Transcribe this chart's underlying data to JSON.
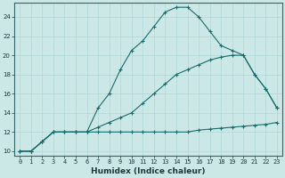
{
  "xlabel": "Humidex (Indice chaleur)",
  "bg_color": "#cce8e6",
  "grid_color": "#b0d8d4",
  "line_color": "#1a6b6b",
  "xlim": [
    -0.5,
    23.5
  ],
  "ylim": [
    9.5,
    25.5
  ],
  "xticks": [
    0,
    1,
    2,
    3,
    4,
    5,
    6,
    7,
    8,
    9,
    10,
    11,
    12,
    13,
    14,
    15,
    16,
    17,
    18,
    19,
    20,
    21,
    22,
    23
  ],
  "yticks": [
    10,
    12,
    14,
    16,
    18,
    20,
    22,
    24
  ],
  "line1_x": [
    0,
    1,
    2,
    3,
    4,
    5,
    6,
    7,
    8,
    9,
    10,
    11,
    12,
    13,
    14,
    15,
    16,
    17,
    18,
    19,
    20,
    21,
    22,
    23
  ],
  "line1_y": [
    10,
    10,
    11,
    12,
    12,
    12,
    12,
    12,
    12,
    12,
    12,
    12,
    12,
    12,
    12,
    12,
    12.2,
    12.3,
    12.4,
    12.5,
    12.6,
    12.7,
    12.8,
    13
  ],
  "line2_x": [
    0,
    1,
    2,
    3,
    4,
    5,
    6,
    7,
    8,
    9,
    10,
    11,
    12,
    13,
    14,
    15,
    16,
    17,
    18,
    19,
    20,
    21,
    22,
    23
  ],
  "line2_y": [
    10,
    10,
    11,
    12,
    12,
    12,
    12,
    12.5,
    13,
    13.5,
    14,
    15,
    16,
    17,
    18,
    18.5,
    19,
    19.5,
    19.8,
    20,
    20,
    18,
    16.5,
    14.5
  ],
  "line3_x": [
    0,
    1,
    2,
    3,
    4,
    5,
    6,
    7,
    8,
    9,
    10,
    11,
    12,
    13,
    14,
    15,
    16,
    17,
    18,
    19,
    20,
    21,
    22,
    23
  ],
  "line3_y": [
    10,
    10,
    11,
    12,
    12,
    12,
    12,
    14.5,
    16,
    18.5,
    20.5,
    21.5,
    23,
    24.5,
    25,
    25,
    24,
    22.5,
    21,
    20.5,
    20,
    18,
    16.5,
    14.5
  ],
  "marker": "+",
  "markersize": 3,
  "linewidth": 0.8
}
